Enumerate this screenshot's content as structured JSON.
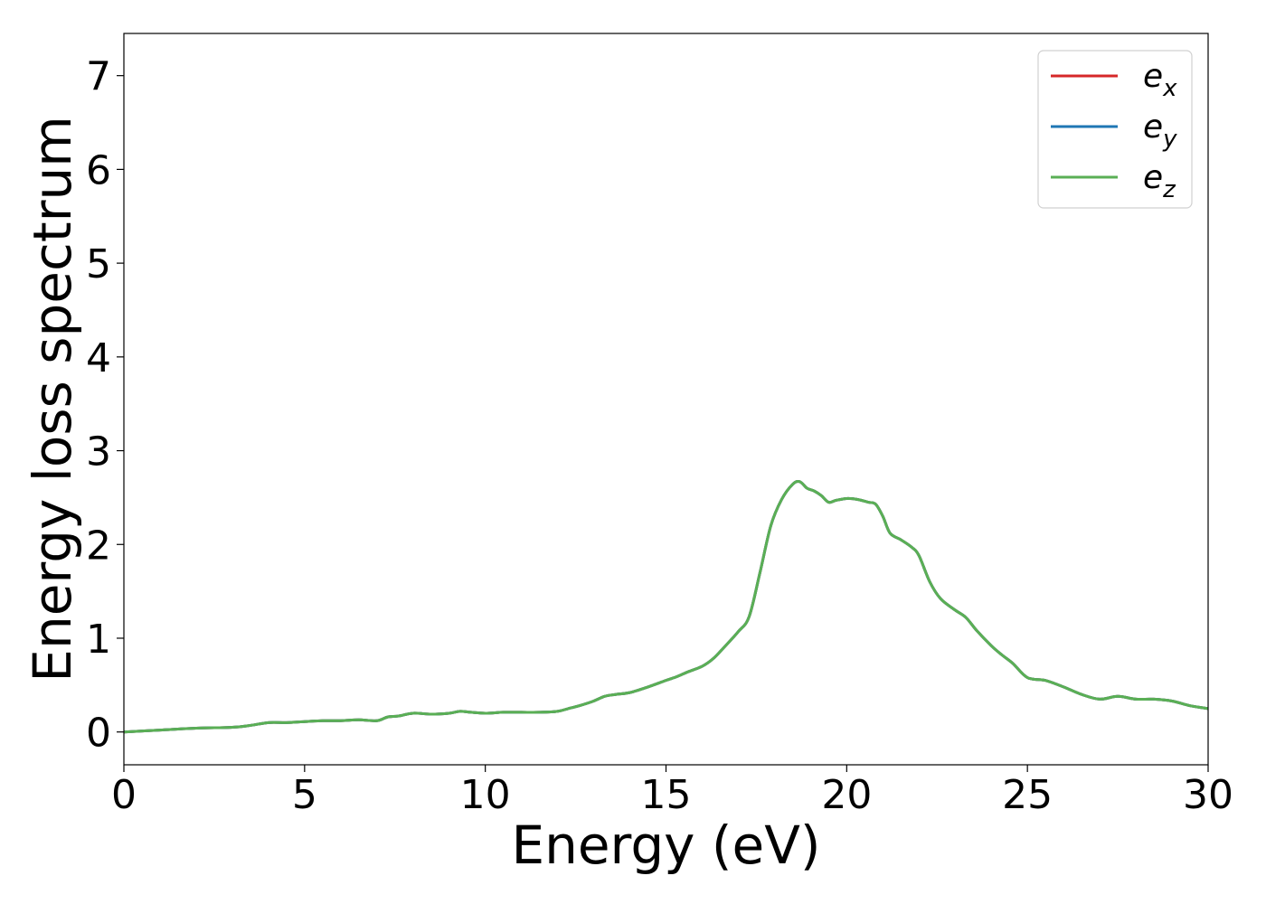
{
  "chart_data": {
    "type": "line",
    "xlabel": "Energy (eV)",
    "ylabel": "Energy loss spectrum",
    "xlim": [
      0,
      30
    ],
    "ylim": [
      -0.35,
      7.45
    ],
    "x_ticks": [
      0,
      5,
      10,
      15,
      20,
      25,
      30
    ],
    "y_ticks": [
      0,
      1,
      2,
      3,
      4,
      5,
      6,
      7
    ],
    "grid": false,
    "legend_position": "top-right",
    "series": [
      {
        "name": "e",
        "subscript": "x",
        "color": "#d62728",
        "x": [
          0,
          1,
          2,
          3,
          3.5,
          4,
          4.5,
          5,
          5.5,
          6,
          6.5,
          7,
          7.3,
          7.6,
          8,
          8.5,
          9,
          9.3,
          9.6,
          10,
          10.5,
          11,
          11.5,
          12,
          12.3,
          12.6,
          13,
          13.3,
          13.6,
          14,
          14.5,
          15,
          15.3,
          15.6,
          16,
          16.3,
          16.6,
          17,
          17.3,
          17.6,
          17.9,
          18.2,
          18.5,
          18.7,
          18.9,
          19.1,
          19.3,
          19.5,
          19.7,
          20,
          20.3,
          20.6,
          20.8,
          21,
          21.2,
          21.5,
          21.8,
          22,
          22.3,
          22.6,
          23,
          23.3,
          23.6,
          24,
          24.3,
          24.6,
          25,
          25.5,
          26,
          26.5,
          27,
          27.5,
          28,
          28.5,
          29,
          29.5,
          30
        ],
        "y": [
          0,
          0.02,
          0.04,
          0.05,
          0.07,
          0.1,
          0.1,
          0.11,
          0.12,
          0.12,
          0.13,
          0.12,
          0.16,
          0.17,
          0.2,
          0.19,
          0.2,
          0.22,
          0.21,
          0.2,
          0.21,
          0.21,
          0.21,
          0.22,
          0.25,
          0.28,
          0.33,
          0.38,
          0.4,
          0.42,
          0.48,
          0.55,
          0.59,
          0.64,
          0.7,
          0.78,
          0.9,
          1.07,
          1.23,
          1.7,
          2.2,
          2.48,
          2.64,
          2.67,
          2.6,
          2.57,
          2.52,
          2.45,
          2.47,
          2.49,
          2.48,
          2.45,
          2.43,
          2.3,
          2.12,
          2.05,
          1.97,
          1.88,
          1.6,
          1.42,
          1.3,
          1.22,
          1.08,
          0.92,
          0.82,
          0.73,
          0.58,
          0.55,
          0.48,
          0.4,
          0.35,
          0.38,
          0.35,
          0.35,
          0.33,
          0.28,
          0.25
        ]
      },
      {
        "name": "e",
        "subscript": "y",
        "color": "#1f77b4",
        "x": [
          0,
          1,
          2,
          3,
          3.5,
          4,
          4.5,
          5,
          5.5,
          6,
          6.5,
          7,
          7.3,
          7.6,
          8,
          8.5,
          9,
          9.3,
          9.6,
          10,
          10.5,
          11,
          11.5,
          12,
          12.3,
          12.6,
          13,
          13.3,
          13.6,
          14,
          14.5,
          15,
          15.3,
          15.6,
          16,
          16.3,
          16.6,
          17,
          17.3,
          17.6,
          17.9,
          18.2,
          18.5,
          18.7,
          18.9,
          19.1,
          19.3,
          19.5,
          19.7,
          20,
          20.3,
          20.6,
          20.8,
          21,
          21.2,
          21.5,
          21.8,
          22,
          22.3,
          22.6,
          23,
          23.3,
          23.6,
          24,
          24.3,
          24.6,
          25,
          25.5,
          26,
          26.5,
          27,
          27.5,
          28,
          28.5,
          29,
          29.5,
          30
        ],
        "y": [
          0,
          0.02,
          0.04,
          0.05,
          0.07,
          0.1,
          0.1,
          0.11,
          0.12,
          0.12,
          0.13,
          0.12,
          0.16,
          0.17,
          0.2,
          0.19,
          0.2,
          0.22,
          0.21,
          0.2,
          0.21,
          0.21,
          0.21,
          0.22,
          0.25,
          0.28,
          0.33,
          0.38,
          0.4,
          0.42,
          0.48,
          0.55,
          0.59,
          0.64,
          0.7,
          0.78,
          0.9,
          1.07,
          1.23,
          1.7,
          2.2,
          2.48,
          2.64,
          2.67,
          2.6,
          2.57,
          2.52,
          2.45,
          2.47,
          2.49,
          2.48,
          2.45,
          2.43,
          2.3,
          2.12,
          2.05,
          1.97,
          1.88,
          1.6,
          1.42,
          1.3,
          1.22,
          1.08,
          0.92,
          0.82,
          0.73,
          0.58,
          0.55,
          0.48,
          0.4,
          0.35,
          0.38,
          0.35,
          0.35,
          0.33,
          0.28,
          0.25
        ]
      },
      {
        "name": "e",
        "subscript": "z",
        "color": "#5aaf55",
        "x": [
          0,
          1,
          2,
          3,
          3.5,
          4,
          4.5,
          5,
          5.5,
          6,
          6.5,
          7,
          7.3,
          7.6,
          8,
          8.5,
          9,
          9.3,
          9.6,
          10,
          10.5,
          11,
          11.5,
          12,
          12.3,
          12.6,
          13,
          13.3,
          13.6,
          14,
          14.5,
          15,
          15.3,
          15.6,
          16,
          16.3,
          16.6,
          17,
          17.3,
          17.6,
          17.9,
          18.2,
          18.5,
          18.7,
          18.9,
          19.1,
          19.3,
          19.5,
          19.7,
          20,
          20.3,
          20.6,
          20.8,
          21,
          21.2,
          21.5,
          21.8,
          22,
          22.3,
          22.6,
          23,
          23.3,
          23.6,
          24,
          24.3,
          24.6,
          25,
          25.5,
          26,
          26.5,
          27,
          27.5,
          28,
          28.5,
          29,
          29.5,
          30
        ],
        "y": [
          0,
          0.02,
          0.04,
          0.05,
          0.07,
          0.1,
          0.1,
          0.11,
          0.12,
          0.12,
          0.13,
          0.12,
          0.16,
          0.17,
          0.2,
          0.19,
          0.2,
          0.22,
          0.21,
          0.2,
          0.21,
          0.21,
          0.21,
          0.22,
          0.25,
          0.28,
          0.33,
          0.38,
          0.4,
          0.42,
          0.48,
          0.55,
          0.59,
          0.64,
          0.7,
          0.78,
          0.9,
          1.07,
          1.23,
          1.7,
          2.2,
          2.48,
          2.64,
          2.67,
          2.6,
          2.57,
          2.52,
          2.45,
          2.47,
          2.49,
          2.48,
          2.45,
          2.43,
          2.3,
          2.12,
          2.05,
          1.97,
          1.88,
          1.6,
          1.42,
          1.3,
          1.22,
          1.08,
          0.92,
          0.82,
          0.73,
          0.58,
          0.55,
          0.48,
          0.4,
          0.35,
          0.38,
          0.35,
          0.35,
          0.33,
          0.28,
          0.25
        ]
      }
    ]
  }
}
